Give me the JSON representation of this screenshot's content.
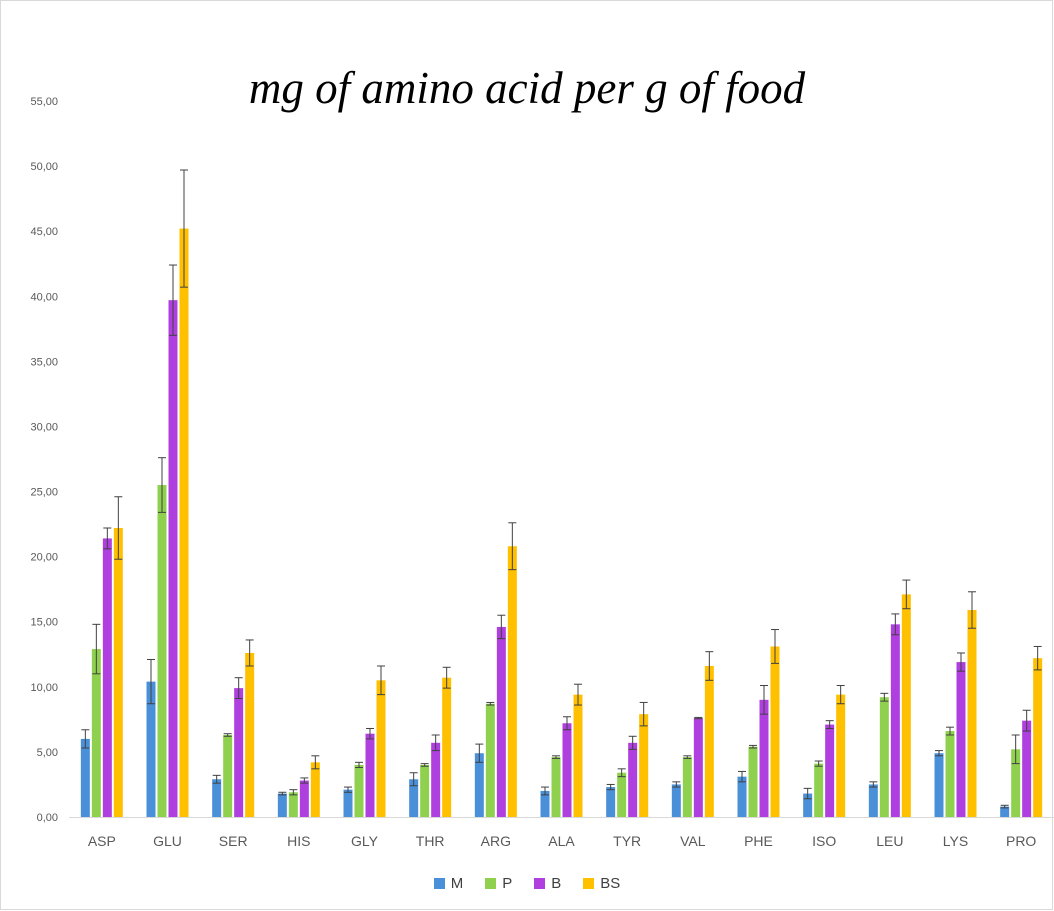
{
  "chart_data": {
    "type": "bar",
    "title": "mg of amino acid per g of food",
    "xlabel": "",
    "ylabel": "",
    "ylim": [
      0,
      55
    ],
    "ytick_step": 5,
    "ytick_labels": [
      "0,00",
      "5,00",
      "10,00",
      "15,00",
      "20,00",
      "25,00",
      "30,00",
      "35,00",
      "40,00",
      "45,00",
      "50,00",
      "55,00"
    ],
    "grid": false,
    "legend_position": "bottom",
    "categories": [
      "ASP",
      "GLU",
      "SER",
      "HIS",
      "GLY",
      "THR",
      "ARG",
      "ALA",
      "TYR",
      "VAL",
      "PHE",
      "ISO",
      "LEU",
      "LYS",
      "PRO"
    ],
    "series": [
      {
        "name": "M",
        "color": "#4a90d9",
        "values": [
          6.0,
          10.4,
          2.9,
          1.8,
          2.1,
          2.9,
          4.9,
          2.0,
          2.3,
          2.5,
          3.1,
          1.8,
          2.5,
          4.9,
          0.8
        ],
        "errors": [
          0.7,
          1.7,
          0.3,
          0.1,
          0.2,
          0.5,
          0.7,
          0.3,
          0.2,
          0.2,
          0.4,
          0.4,
          0.2,
          0.2,
          0.1
        ]
      },
      {
        "name": "P",
        "color": "#8fd14f",
        "values": [
          12.9,
          25.5,
          6.3,
          1.9,
          4.0,
          4.0,
          8.7,
          4.6,
          3.4,
          4.6,
          5.4,
          4.1,
          9.2,
          6.6,
          5.2
        ],
        "errors": [
          1.9,
          2.1,
          0.1,
          0.2,
          0.2,
          0.1,
          0.1,
          0.1,
          0.3,
          0.1,
          0.1,
          0.2,
          0.3,
          0.3,
          1.1
        ]
      },
      {
        "name": "B",
        "color": "#b03fe0",
        "values": [
          21.4,
          39.7,
          9.9,
          2.8,
          6.4,
          5.7,
          14.6,
          7.2,
          5.7,
          7.6,
          9.0,
          7.1,
          14.8,
          11.9,
          7.4
        ],
        "errors": [
          0.8,
          2.7,
          0.8,
          0.2,
          0.4,
          0.6,
          0.9,
          0.5,
          0.5,
          0.05,
          1.1,
          0.3,
          0.8,
          0.7,
          0.8
        ]
      },
      {
        "name": "BS",
        "color": "#ffc000",
        "values": [
          22.2,
          45.2,
          12.6,
          4.2,
          10.5,
          10.7,
          20.8,
          9.4,
          7.9,
          11.6,
          13.1,
          9.4,
          17.1,
          15.9,
          12.2
        ],
        "errors": [
          2.4,
          4.5,
          1.0,
          0.5,
          1.1,
          0.8,
          1.8,
          0.8,
          0.9,
          1.1,
          1.3,
          0.7,
          1.1,
          1.4,
          0.9
        ]
      }
    ]
  }
}
